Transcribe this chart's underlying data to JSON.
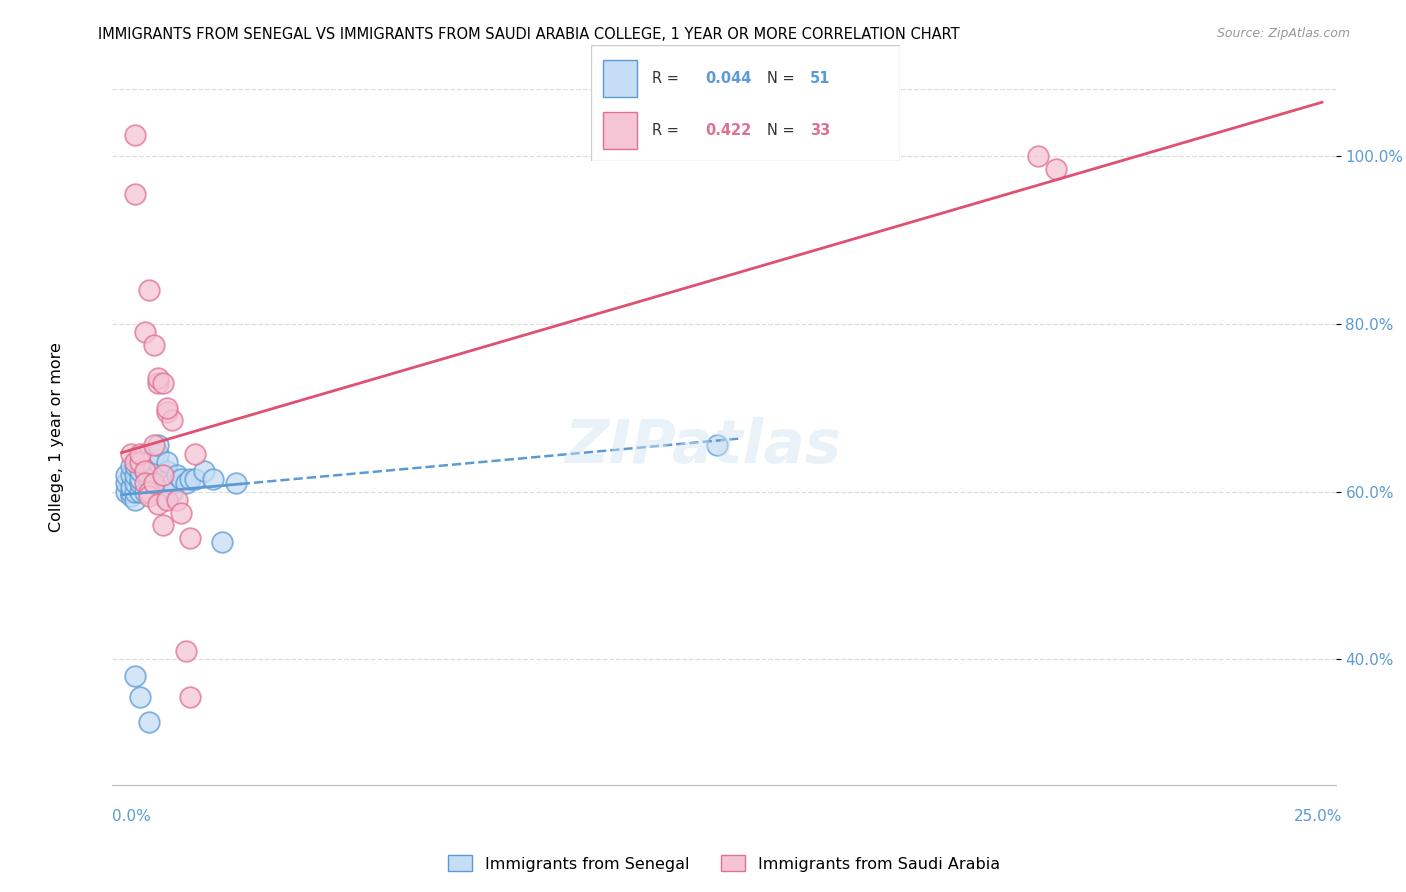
{
  "title": "IMMIGRANTS FROM SENEGAL VS IMMIGRANTS FROM SAUDI ARABIA COLLEGE, 1 YEAR OR MORE CORRELATION CHART",
  "source": "Source: ZipAtlas.com",
  "ylabel": "College, 1 year or more",
  "xlim": [
    -0.002,
    0.265
  ],
  "ylim": [
    0.25,
    1.08
  ],
  "yticks": [
    0.4,
    0.6,
    0.8,
    1.0
  ],
  "ytick_labels": [
    "40.0%",
    "60.0%",
    "80.0%",
    "100.0%"
  ],
  "legend_blue_R": "0.044",
  "legend_blue_N": "51",
  "legend_pink_R": "0.422",
  "legend_pink_N": "33",
  "blue_fill": "#c5ddf5",
  "blue_edge": "#5b9bd5",
  "pink_fill": "#f5c5d5",
  "pink_edge": "#e07090",
  "blue_line": "#5b9bd5",
  "pink_line": "#e05070",
  "senegal_x": [
    0.001,
    0.001,
    0.001,
    0.002,
    0.002,
    0.002,
    0.002,
    0.002,
    0.003,
    0.003,
    0.003,
    0.003,
    0.003,
    0.004,
    0.004,
    0.004,
    0.004,
    0.005,
    0.005,
    0.005,
    0.005,
    0.006,
    0.006,
    0.006,
    0.006,
    0.007,
    0.007,
    0.007,
    0.008,
    0.008,
    0.008,
    0.009,
    0.009,
    0.01,
    0.01,
    0.01,
    0.011,
    0.011,
    0.012,
    0.013,
    0.014,
    0.015,
    0.016,
    0.018,
    0.02,
    0.022,
    0.025,
    0.003,
    0.004,
    0.006,
    0.13
  ],
  "senegal_y": [
    0.6,
    0.61,
    0.62,
    0.595,
    0.6,
    0.605,
    0.62,
    0.63,
    0.59,
    0.6,
    0.61,
    0.62,
    0.63,
    0.6,
    0.61,
    0.615,
    0.625,
    0.6,
    0.625,
    0.635,
    0.645,
    0.6,
    0.615,
    0.625,
    0.635,
    0.62,
    0.63,
    0.645,
    0.635,
    0.645,
    0.655,
    0.595,
    0.61,
    0.61,
    0.625,
    0.635,
    0.6,
    0.61,
    0.62,
    0.615,
    0.61,
    0.615,
    0.615,
    0.625,
    0.615,
    0.54,
    0.61,
    0.38,
    0.355,
    0.325,
    0.655
  ],
  "saudi_x": [
    0.002,
    0.003,
    0.003,
    0.004,
    0.004,
    0.005,
    0.005,
    0.006,
    0.006,
    0.007,
    0.007,
    0.008,
    0.008,
    0.009,
    0.009,
    0.01,
    0.01,
    0.011,
    0.012,
    0.013,
    0.014,
    0.015,
    0.015,
    0.016,
    0.005,
    0.006,
    0.007,
    0.008,
    0.009,
    0.01,
    0.2,
    0.204,
    0.003
  ],
  "saudi_y": [
    0.645,
    0.635,
    1.025,
    0.635,
    0.645,
    0.625,
    0.61,
    0.6,
    0.595,
    0.61,
    0.655,
    0.585,
    0.73,
    0.56,
    0.62,
    0.59,
    0.695,
    0.685,
    0.59,
    0.575,
    0.41,
    0.545,
    0.355,
    0.645,
    0.79,
    0.84,
    0.775,
    0.735,
    0.73,
    0.7,
    1.0,
    0.985,
    0.955
  ]
}
